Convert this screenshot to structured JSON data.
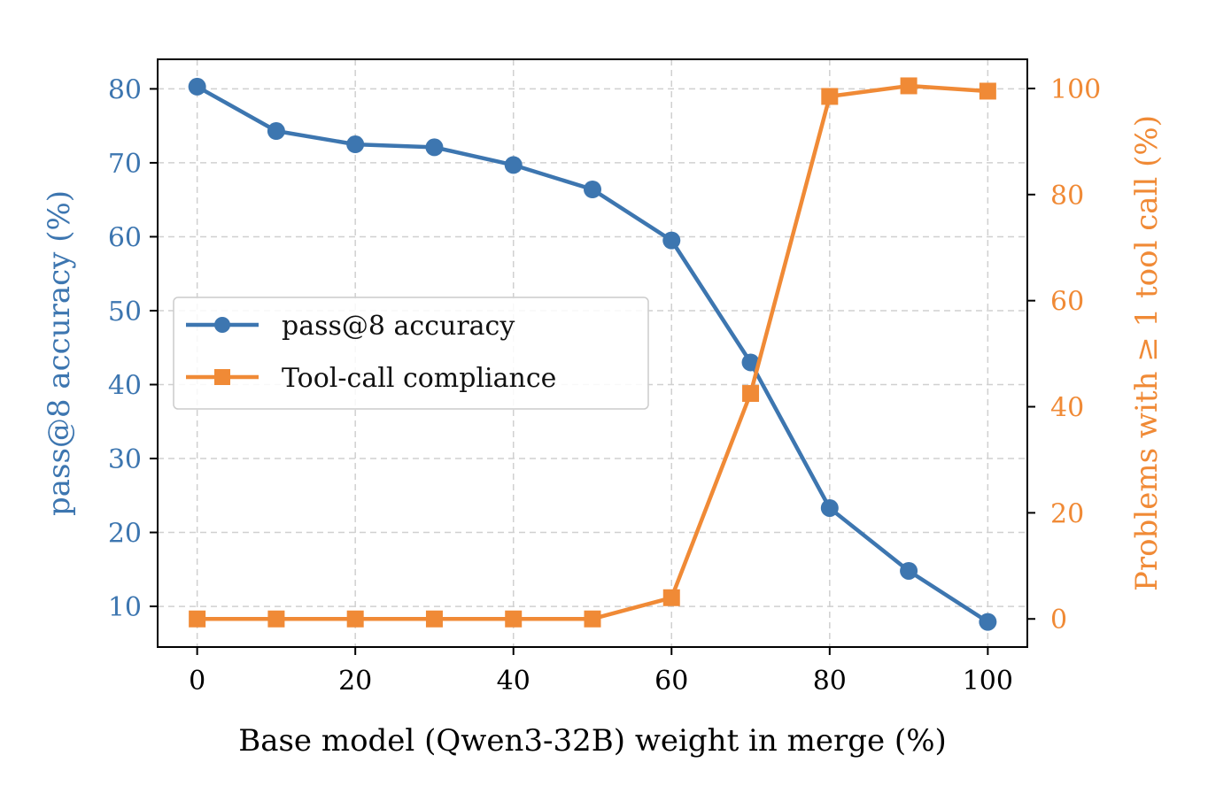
{
  "chart_data": {
    "type": "line",
    "x": [
      0,
      10,
      20,
      30,
      40,
      50,
      60,
      70,
      80,
      90,
      100
    ],
    "xlabel": "Base model (Qwen3-32B) weight in merge (%)",
    "xticks": [
      "0",
      "20",
      "40",
      "60",
      "80",
      "100"
    ],
    "xlim": [
      -5,
      105
    ],
    "ylabel_left": "pass@8 accuracy (%)",
    "ylabel_right": "Problems with ≥ 1 tool call (%)",
    "yticks_left": [
      "10",
      "20",
      "30",
      "40",
      "50",
      "60",
      "70",
      "80"
    ],
    "yticks_right": [
      "0",
      "20",
      "40",
      "60",
      "80",
      "100"
    ],
    "ylim_left": [
      4.5,
      84
    ],
    "ylim_right": [
      -5.3,
      105.5
    ],
    "grid": true,
    "legend_position": "center-left",
    "colors": {
      "left": "#3d76b0",
      "right": "#f08a36"
    },
    "series": [
      {
        "name": "pass@8 accuracy",
        "axis": "left",
        "marker": "circle",
        "values": [
          80.3,
          74.3,
          72.5,
          72.1,
          69.7,
          66.4,
          59.5,
          43.0,
          23.3,
          14.8,
          7.9
        ]
      },
      {
        "name": "Tool-call compliance",
        "axis": "right",
        "marker": "square",
        "values": [
          0.0,
          0.0,
          0.0,
          0.0,
          0.0,
          0.0,
          4.0,
          42.5,
          98.5,
          100.5,
          99.5
        ]
      }
    ]
  }
}
